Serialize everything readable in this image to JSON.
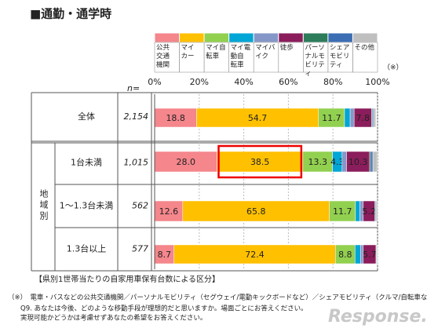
{
  "chart_data": {
    "type": "stacked-bar-horizontal",
    "title": "■通勤・通学時",
    "legend_note": "（※）",
    "n_label": "n=",
    "group_label": "地域別",
    "categories": [
      "全体",
      "1台未満",
      "1～1.3台未満",
      "1.3台以上"
    ],
    "n": [
      "2,154",
      "1,015",
      "562",
      "577"
    ],
    "xlim": [
      0,
      100
    ],
    "xticks": [
      {
        "value": 0,
        "label": "0%"
      },
      {
        "value": 20,
        "label": "20%"
      },
      {
        "value": 40,
        "label": "40%"
      },
      {
        "value": 60,
        "label": "60%"
      },
      {
        "value": 80,
        "label": "80%"
      },
      {
        "value": 100,
        "label": "100%"
      }
    ],
    "grid": true,
    "series": [
      {
        "name": "公共\n交通\n機関",
        "color": "#f4868c",
        "values": [
          18.8,
          28.0,
          12.6,
          8.7
        ],
        "value_labels": [
          "18.8",
          "28.0",
          "12.6",
          "8.7"
        ]
      },
      {
        "name": "マイ\nカー",
        "color": "#ffc000",
        "values": [
          54.7,
          38.5,
          65.8,
          72.4
        ],
        "value_labels": [
          "54.7",
          "38.5",
          "65.8",
          "72.4"
        ]
      },
      {
        "name": "マイ自\n転車",
        "color": "#92d050",
        "values": [
          11.7,
          13.3,
          11.7,
          8.8
        ],
        "value_labels": [
          "11.7",
          "13.3",
          "11.7",
          "8.8"
        ]
      },
      {
        "name": "マイ電\n動自\n転車",
        "color": "#00a6d6",
        "values": [
          2.5,
          4.3,
          2.0,
          2.5
        ],
        "value_labels": [
          null,
          "4.3",
          null,
          null
        ]
      },
      {
        "name": "マイバ\nイク",
        "color": "#8497c8",
        "values": [
          1.8,
          2.0,
          1.5,
          1.2
        ],
        "value_labels": [
          null,
          null,
          null,
          null
        ]
      },
      {
        "name": "徒歩",
        "color": "#8b1d5c",
        "values": [
          7.8,
          10.3,
          5.2,
          5.7
        ],
        "value_labels": [
          "7.8",
          "10.3",
          "5.2",
          "5.7"
        ]
      },
      {
        "name": "パーソ\nナルモ\nビリティ",
        "color": "#2e7d5a",
        "values": [
          0.3,
          0.5,
          0.3,
          0.2
        ],
        "value_labels": [
          null,
          null,
          null,
          null
        ]
      },
      {
        "name": "シェア\nモビリ\nティ",
        "color": "#3c6eb4",
        "values": [
          0.6,
          1.0,
          0.4,
          0.2
        ],
        "value_labels": [
          null,
          null,
          null,
          null
        ]
      },
      {
        "name": "その他",
        "color": "#bfbfbf",
        "values": [
          1.0,
          2.0,
          0.5,
          0.3
        ],
        "value_labels": [
          null,
          null,
          null,
          null
        ]
      }
    ],
    "highlight": "38.5",
    "note": "【県別1世帯当たりの自家用車保有台数による区分】",
    "footnotes": [
      "（※）　電車・バスなどの公共交通機関／パーソナルモビリティ（セグウェイ/電動キックボードなど）／シェアモビリティ（クルマ/自転車など）",
      "Q9. あなたは今後、どのような移動手段が理想的だと思いますか。場面ごとにお答えください。",
      "実現可能かどうかは考慮せずあなたの希望をお答えください。"
    ],
    "watermark": "Response."
  }
}
